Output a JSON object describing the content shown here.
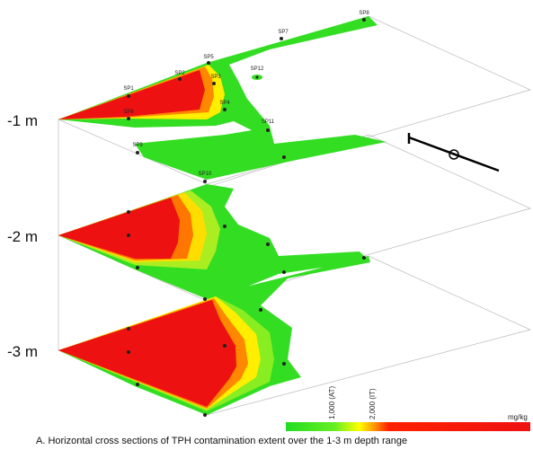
{
  "depth_labels": [
    "-1 m",
    "-2 m",
    "-3 m"
  ],
  "sample_points": [
    "SP1",
    "SP2",
    "SP3",
    "SP4",
    "SP5",
    "SP6",
    "SP7",
    "SP8",
    "SP9",
    "SP10",
    "SP11",
    "SP12"
  ],
  "legend": {
    "labels": [
      "1,000 (AT)",
      "2,000 (IT)"
    ],
    "unit": "mg/kg"
  },
  "caption": "A. Horizontal cross sections of TPH contamination extent over the 1-3 m depth range"
}
